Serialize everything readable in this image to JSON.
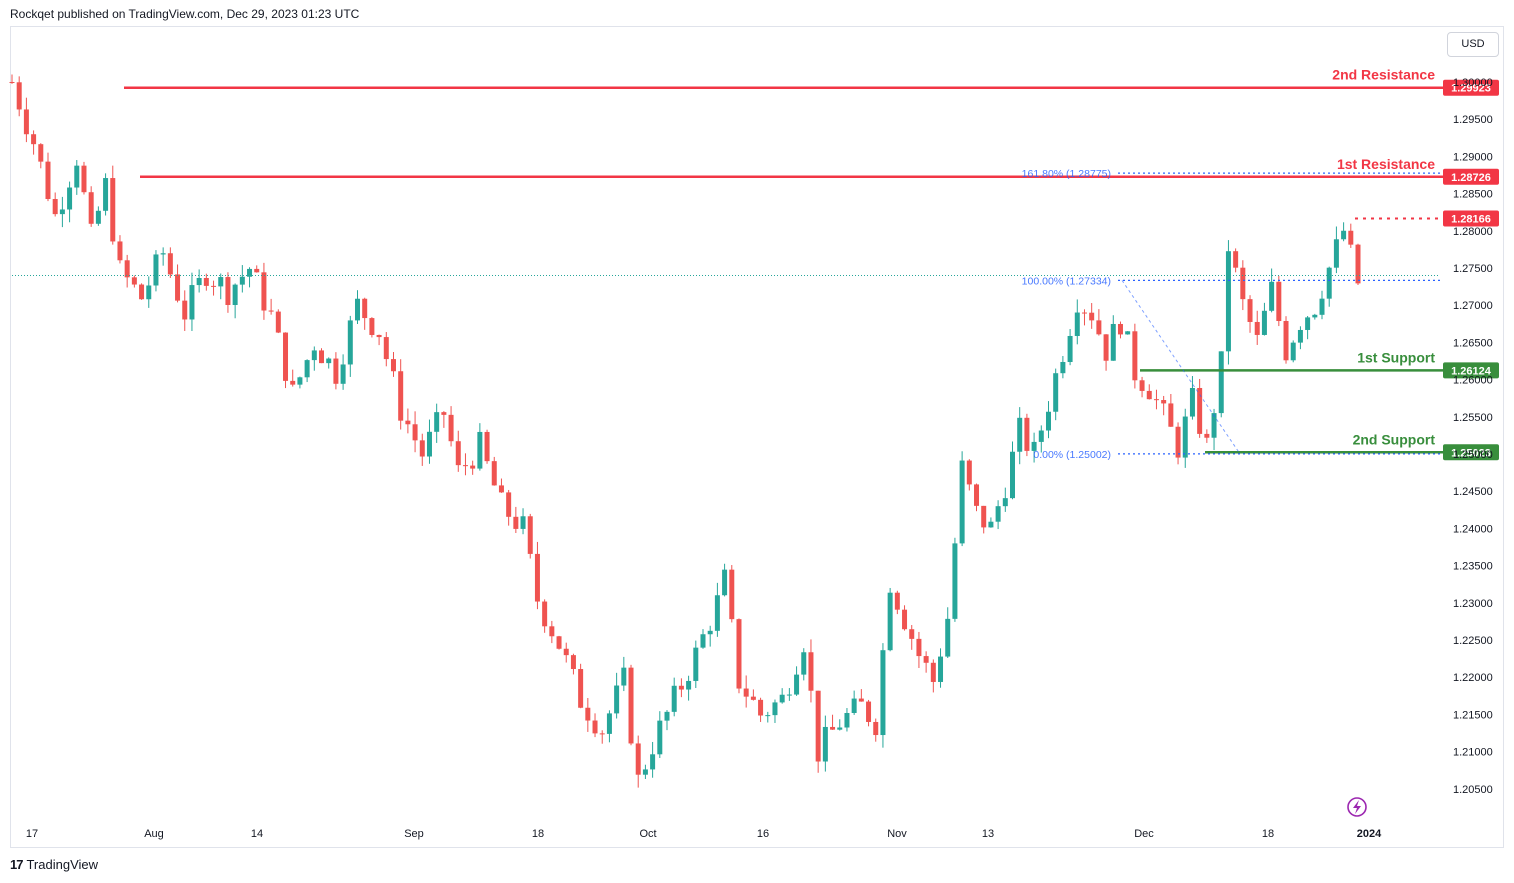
{
  "header": {
    "title": "Rockqet published on TradingView.com, Dec 29, 2023 01:23 UTC"
  },
  "footer": {
    "brand": "TradingView",
    "logo_text": "17"
  },
  "currency_button": "USD",
  "colors": {
    "resistance": "#f23645",
    "support": "#388e3c",
    "fib": "#2962ff",
    "up": "#26a69a",
    "down": "#ef5350",
    "text": "#131722"
  },
  "chart_data": {
    "type": "candlestick",
    "y_axis_ticks": [
      "1.30000",
      "1.29500",
      "1.29000",
      "1.28500",
      "1.28000",
      "1.27500",
      "1.27000",
      "1.26500",
      "1.26000",
      "1.25500",
      "1.25000",
      "1.24500",
      "1.24000",
      "1.23500",
      "1.23000",
      "1.22500",
      "1.22000",
      "1.21500",
      "1.21000",
      "1.20500"
    ],
    "x_axis_ticks": [
      "17",
      "Aug",
      "14",
      "Sep",
      "18",
      "Oct",
      "16",
      "Nov",
      "13",
      "Dec",
      "18",
      "2024"
    ],
    "ylim": [
      1.203,
      1.306
    ],
    "close_path": [
      [
        0,
        1.3
      ],
      [
        3,
        1.292
      ],
      [
        6,
        1.282
      ],
      [
        9,
        1.29
      ],
      [
        11,
        1.279
      ],
      [
        13,
        1.286
      ],
      [
        15,
        1.2745
      ],
      [
        18,
        1.271
      ],
      [
        21,
        1.277
      ],
      [
        24,
        1.269
      ],
      [
        27,
        1.2745
      ],
      [
        30,
        1.272
      ],
      [
        33,
        1.275
      ],
      [
        36,
        1.2685
      ],
      [
        39,
        1.258
      ],
      [
        42,
        1.265
      ],
      [
        45,
        1.261
      ],
      [
        48,
        1.27
      ],
      [
        51,
        1.2665
      ],
      [
        54,
        1.256
      ],
      [
        57,
        1.25
      ],
      [
        60,
        1.2555
      ],
      [
        62,
        1.2475
      ],
      [
        65,
        1.251
      ],
      [
        68,
        1.243
      ],
      [
        71,
        1.24
      ],
      [
        73,
        1.2305
      ],
      [
        76,
        1.2245
      ],
      [
        79,
        1.217
      ],
      [
        82,
        1.213
      ],
      [
        85,
        1.2195
      ],
      [
        87,
        1.206
      ],
      [
        89,
        1.211
      ],
      [
        92,
        1.217
      ],
      [
        95,
        1.223
      ],
      [
        98,
        1.23
      ],
      [
        99,
        1.233
      ],
      [
        101,
        1.2195
      ],
      [
        104,
        1.215
      ],
      [
        107,
        1.217
      ],
      [
        110,
        1.225
      ],
      [
        112,
        1.21
      ],
      [
        115,
        1.214
      ],
      [
        118,
        1.216
      ],
      [
        120,
        1.214
      ],
      [
        122,
        1.233
      ],
      [
        124,
        1.228
      ],
      [
        126,
        1.223
      ],
      [
        128,
        1.2195
      ],
      [
        130,
        1.228
      ],
      [
        132,
        1.248
      ],
      [
        134,
        1.242
      ],
      [
        136,
        1.24
      ],
      [
        138,
        1.246
      ],
      [
        140,
        1.253
      ],
      [
        142,
        1.25
      ],
      [
        144,
        1.257
      ],
      [
        146,
        1.264
      ],
      [
        148,
        1.271
      ],
      [
        150,
        1.269
      ],
      [
        152,
        1.264
      ],
      [
        154,
        1.268
      ],
      [
        156,
        1.261
      ],
      [
        158,
        1.259
      ],
      [
        160,
        1.255
      ],
      [
        162,
        1.251
      ],
      [
        164,
        1.257
      ],
      [
        166,
        1.251
      ],
      [
        168,
        1.262
      ],
      [
        169,
        1.278
      ],
      [
        171,
        1.27
      ],
      [
        173,
        1.265
      ],
      [
        175,
        1.272
      ],
      [
        177,
        1.264
      ],
      [
        179,
        1.268
      ],
      [
        181,
        1.27
      ],
      [
        183,
        1.275
      ],
      [
        185,
        1.28
      ],
      [
        187,
        1.273
      ]
    ],
    "bar_count": 187,
    "levels": [
      {
        "name": "2nd Resistance",
        "price": "1.29923",
        "value": 1.29923,
        "kind": "resistance"
      },
      {
        "name": "1st Resistance",
        "price": "1.28726",
        "value": 1.28726,
        "kind": "resistance"
      },
      {
        "name": "",
        "price": "1.28166",
        "value": 1.28166,
        "kind": "resistance-dotted"
      },
      {
        "name": "1st Support",
        "price": "1.26124",
        "value": 1.26124,
        "kind": "support"
      },
      {
        "name": "2nd Support",
        "price": "1.25023",
        "value": 1.25023,
        "kind": "support"
      }
    ],
    "fib": [
      {
        "label": "161.80% (1.28775)",
        "value": 1.28775
      },
      {
        "label": "100.00% (1.27334)",
        "value": 1.27334
      },
      {
        "label": "0.00% (1.25002)",
        "value": 1.25002
      }
    ],
    "current_price": 1.274
  }
}
